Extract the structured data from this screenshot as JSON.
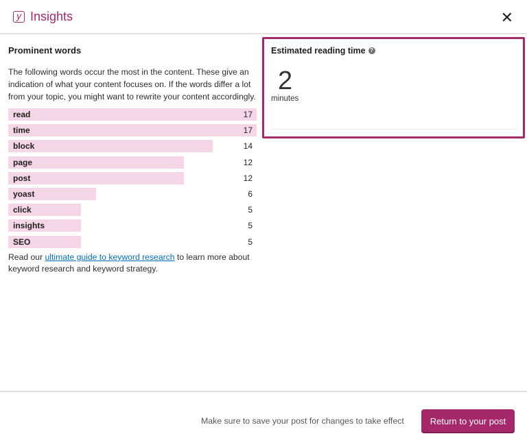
{
  "header": {
    "title": "Insights",
    "logo_icon": "yoast-logo",
    "close_icon": "close-icon"
  },
  "prominent": {
    "heading": "Prominent words",
    "description": "The following words occur the most in the content. These give an indication of what your content focuses on. If the words differ a lot from your topic, you might want to rewrite your content accordingly.",
    "bar_color": "#f5d6e6",
    "words": [
      {
        "word": "read",
        "count": 17
      },
      {
        "word": "time",
        "count": 17
      },
      {
        "word": "block",
        "count": 14
      },
      {
        "word": "page",
        "count": 12
      },
      {
        "word": "post",
        "count": 12
      },
      {
        "word": "yoast",
        "count": 6
      },
      {
        "word": "click",
        "count": 5
      },
      {
        "word": "insights",
        "count": 5
      },
      {
        "word": "SEO",
        "count": 5
      }
    ],
    "footer_before": "Read our ",
    "footer_link": "ultimate guide to keyword research",
    "footer_after": " to learn more about keyword research and keyword strategy."
  },
  "reading_time": {
    "heading": "Estimated reading time",
    "value": "2",
    "unit": "minutes"
  },
  "footer": {
    "note": "Make sure to save your post for changes to take effect",
    "button": "Return to your post"
  },
  "accent": "#a4286a"
}
